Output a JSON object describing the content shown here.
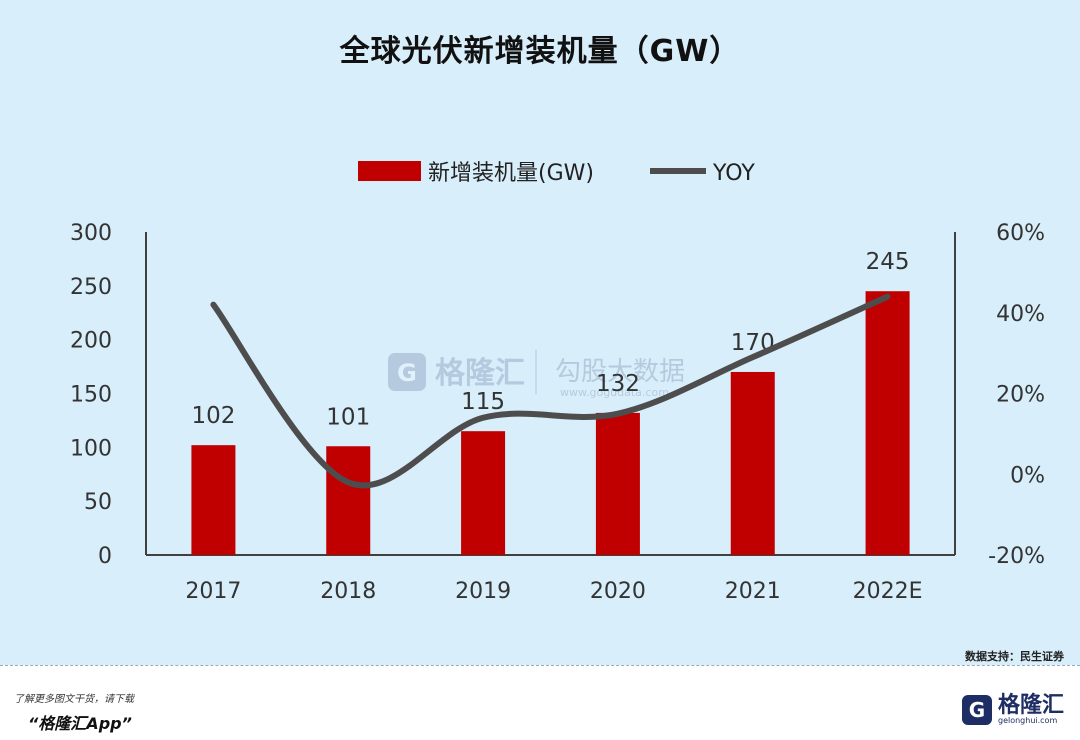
{
  "title": "全球光伏新增装机量（GW）",
  "source": "数据支持：民生证券",
  "footer": {
    "line1": "了解更多图文干货，请下载",
    "line2": "“格隆汇App”"
  },
  "brand": {
    "logo_letter": "G",
    "name": "格隆汇",
    "url": "gelonghui.com"
  },
  "watermark": {
    "brand": "格隆汇",
    "secondary": "勾股大数据",
    "url": "www.gogudata.com"
  },
  "colors": {
    "bar": "#c00000",
    "line": "#4d4d4d",
    "background": "#d8eefa",
    "axis": "#404040"
  },
  "chart_data": {
    "type": "bar",
    "categories": [
      "2017",
      "2018",
      "2019",
      "2020",
      "2021",
      "2022E"
    ],
    "series": [
      {
        "name": "新增装机量(GW)",
        "type": "bar",
        "axis": "left",
        "values": [
          102,
          101,
          115,
          132,
          170,
          245
        ]
      },
      {
        "name": "YOY",
        "type": "line",
        "axis": "right",
        "values": [
          0.42,
          -0.02,
          0.14,
          0.15,
          0.29,
          0.44
        ]
      }
    ],
    "data_labels": [
      "102",
      "101",
      "115",
      "132",
      "170",
      "245"
    ],
    "y_left": {
      "ylim": [
        0,
        300
      ],
      "ticks": [
        "0",
        "50",
        "100",
        "150",
        "200",
        "250",
        "300"
      ]
    },
    "y_right": {
      "ylim": [
        -0.2,
        0.6
      ],
      "ticks": [
        "-20%",
        "0%",
        "20%",
        "40%",
        "60%"
      ]
    },
    "legend_position": "top",
    "grid": false
  }
}
